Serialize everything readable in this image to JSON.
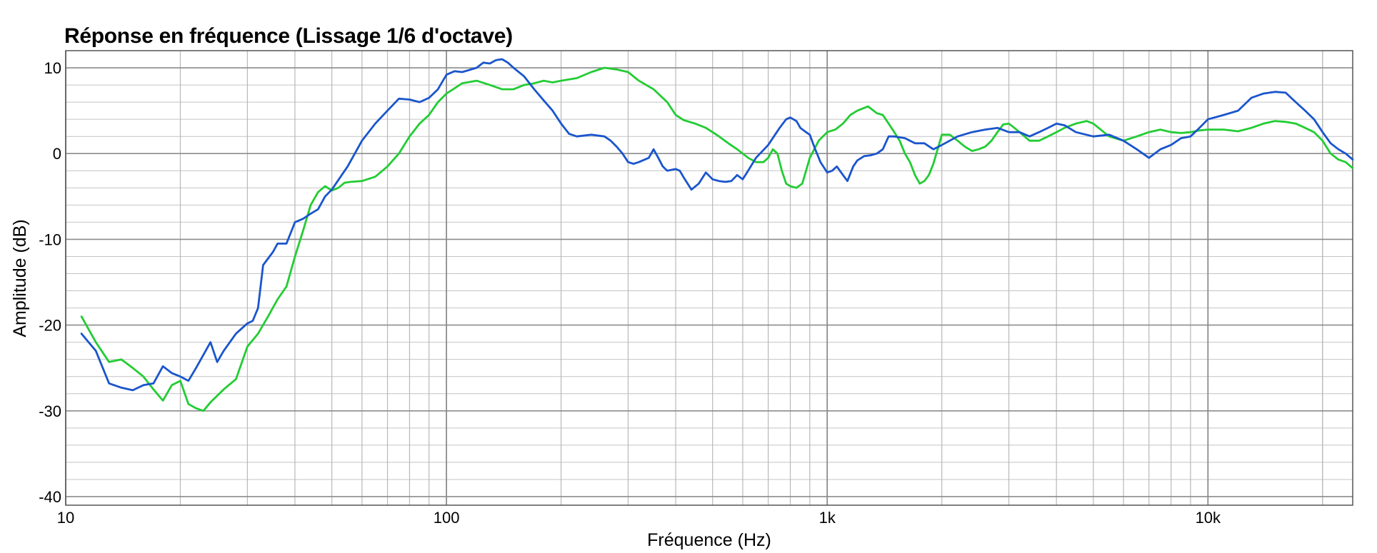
{
  "chart_data": {
    "type": "line",
    "title": "Réponse en fréquence (Lissage 1/6 d'octave)",
    "xlabel": "Fréquence (Hz)",
    "ylabel": "Amplitude (dB)",
    "xscale": "log",
    "xlim": [
      10,
      24000
    ],
    "ylim": [
      -41,
      12
    ],
    "grid": true,
    "x_ticks": [
      {
        "value": 10,
        "label": "10"
      },
      {
        "value": 100,
        "label": "100"
      },
      {
        "value": 1000,
        "label": "1k"
      },
      {
        "value": 10000,
        "label": "10k"
      }
    ],
    "y_ticks": [
      {
        "value": 10,
        "label": "10"
      },
      {
        "value": 0,
        "label": "0"
      },
      {
        "value": -10,
        "label": "-10"
      },
      {
        "value": -20,
        "label": "-20"
      },
      {
        "value": -30,
        "label": "-30"
      },
      {
        "value": -40,
        "label": "-40"
      }
    ],
    "series": [
      {
        "color": "#1a55cc",
        "points": [
          [
            11,
            -21
          ],
          [
            12,
            -23
          ],
          [
            13,
            -26.8
          ],
          [
            14,
            -27.3
          ],
          [
            15,
            -27.6
          ],
          [
            16,
            -27
          ],
          [
            17,
            -26.8
          ],
          [
            18,
            -24.8
          ],
          [
            19,
            -25.6
          ],
          [
            20,
            -26
          ],
          [
            21,
            -26.5
          ],
          [
            22,
            -25
          ],
          [
            24,
            -22
          ],
          [
            25,
            -24.3
          ],
          [
            26,
            -23
          ],
          [
            28,
            -21
          ],
          [
            30,
            -19.8
          ],
          [
            31,
            -19.5
          ],
          [
            32,
            -18
          ],
          [
            33,
            -13
          ],
          [
            35,
            -11.5
          ],
          [
            36,
            -10.5
          ],
          [
            38,
            -10.5
          ],
          [
            40,
            -8
          ],
          [
            42,
            -7.6
          ],
          [
            44,
            -7
          ],
          [
            46,
            -6.5
          ],
          [
            48,
            -5
          ],
          [
            50,
            -4.2
          ],
          [
            55,
            -1.5
          ],
          [
            60,
            1.5
          ],
          [
            65,
            3.5
          ],
          [
            70,
            5
          ],
          [
            75,
            6.4
          ],
          [
            80,
            6.3
          ],
          [
            85,
            6
          ],
          [
            90,
            6.5
          ],
          [
            95,
            7.5
          ],
          [
            100,
            9.2
          ],
          [
            105,
            9.6
          ],
          [
            110,
            9.5
          ],
          [
            120,
            10
          ],
          [
            125,
            10.6
          ],
          [
            130,
            10.5
          ],
          [
            135,
            10.9
          ],
          [
            140,
            11
          ],
          [
            145,
            10.6
          ],
          [
            150,
            10
          ],
          [
            160,
            9
          ],
          [
            170,
            7.5
          ],
          [
            180,
            6.2
          ],
          [
            190,
            5
          ],
          [
            200,
            3.5
          ],
          [
            210,
            2.3
          ],
          [
            220,
            2
          ],
          [
            240,
            2.2
          ],
          [
            260,
            2
          ],
          [
            270,
            1.5
          ],
          [
            280,
            0.8
          ],
          [
            290,
            0
          ],
          [
            300,
            -1
          ],
          [
            310,
            -1.2
          ],
          [
            320,
            -1
          ],
          [
            340,
            -0.5
          ],
          [
            350,
            0.5
          ],
          [
            360,
            -0.5
          ],
          [
            370,
            -1.5
          ],
          [
            380,
            -2
          ],
          [
            400,
            -1.8
          ],
          [
            410,
            -2
          ],
          [
            420,
            -2.8
          ],
          [
            440,
            -4.2
          ],
          [
            460,
            -3.5
          ],
          [
            480,
            -2.2
          ],
          [
            500,
            -3
          ],
          [
            520,
            -3.2
          ],
          [
            540,
            -3.3
          ],
          [
            560,
            -3.2
          ],
          [
            580,
            -2.5
          ],
          [
            600,
            -3
          ],
          [
            620,
            -2
          ],
          [
            650,
            -0.5
          ],
          [
            700,
            1
          ],
          [
            750,
            3
          ],
          [
            780,
            4
          ],
          [
            800,
            4.2
          ],
          [
            830,
            3.8
          ],
          [
            850,
            3
          ],
          [
            880,
            2.5
          ],
          [
            900,
            2.2
          ],
          [
            930,
            0.5
          ],
          [
            960,
            -1
          ],
          [
            1000,
            -2.2
          ],
          [
            1030,
            -2
          ],
          [
            1060,
            -1.5
          ],
          [
            1080,
            -2
          ],
          [
            1100,
            -2.5
          ],
          [
            1130,
            -3.2
          ],
          [
            1170,
            -1.5
          ],
          [
            1200,
            -0.8
          ],
          [
            1250,
            -0.3
          ],
          [
            1300,
            -0.2
          ],
          [
            1350,
            0
          ],
          [
            1400,
            0.5
          ],
          [
            1450,
            2
          ],
          [
            1500,
            2
          ],
          [
            1600,
            1.8
          ],
          [
            1700,
            1.2
          ],
          [
            1800,
            1.2
          ],
          [
            1900,
            0.5
          ],
          [
            2000,
            1
          ],
          [
            2200,
            2
          ],
          [
            2400,
            2.5
          ],
          [
            2600,
            2.8
          ],
          [
            2800,
            3
          ],
          [
            3000,
            2.5
          ],
          [
            3200,
            2.5
          ],
          [
            3400,
            2
          ],
          [
            3600,
            2.5
          ],
          [
            3800,
            3
          ],
          [
            4000,
            3.5
          ],
          [
            4200,
            3.3
          ],
          [
            4500,
            2.5
          ],
          [
            5000,
            2
          ],
          [
            5500,
            2.2
          ],
          [
            6000,
            1.5
          ],
          [
            6500,
            0.5
          ],
          [
            7000,
            -0.5
          ],
          [
            7500,
            0.5
          ],
          [
            8000,
            1
          ],
          [
            8500,
            1.8
          ],
          [
            9000,
            2
          ],
          [
            9500,
            3
          ],
          [
            10000,
            4
          ],
          [
            11000,
            4.5
          ],
          [
            12000,
            5
          ],
          [
            13000,
            6.5
          ],
          [
            14000,
            7
          ],
          [
            15000,
            7.2
          ],
          [
            16000,
            7.1
          ],
          [
            17000,
            6
          ],
          [
            18000,
            5
          ],
          [
            19000,
            4
          ],
          [
            20000,
            2.5
          ],
          [
            21000,
            1.2
          ],
          [
            22000,
            0.5
          ],
          [
            23000,
            0
          ],
          [
            24000,
            -0.7
          ]
        ]
      },
      {
        "color": "#22cc33",
        "points": [
          [
            11,
            -19
          ],
          [
            12,
            -22
          ],
          [
            13,
            -24.3
          ],
          [
            14,
            -24
          ],
          [
            15,
            -25
          ],
          [
            16,
            -26
          ],
          [
            17,
            -27.5
          ],
          [
            18,
            -28.8
          ],
          [
            19,
            -27
          ],
          [
            20,
            -26.5
          ],
          [
            21,
            -29.2
          ],
          [
            22,
            -29.7
          ],
          [
            23,
            -30
          ],
          [
            24,
            -29
          ],
          [
            26,
            -27.5
          ],
          [
            28,
            -26.3
          ],
          [
            30,
            -22.5
          ],
          [
            32,
            -21
          ],
          [
            34,
            -19
          ],
          [
            36,
            -17
          ],
          [
            38,
            -15.5
          ],
          [
            40,
            -12
          ],
          [
            42,
            -9
          ],
          [
            44,
            -6
          ],
          [
            46,
            -4.5
          ],
          [
            48,
            -3.8
          ],
          [
            50,
            -4.3
          ],
          [
            52,
            -4
          ],
          [
            54,
            -3.4
          ],
          [
            56,
            -3.3
          ],
          [
            60,
            -3.2
          ],
          [
            65,
            -2.7
          ],
          [
            70,
            -1.5
          ],
          [
            75,
            0
          ],
          [
            80,
            2
          ],
          [
            85,
            3.5
          ],
          [
            90,
            4.5
          ],
          [
            95,
            6
          ],
          [
            100,
            7
          ],
          [
            110,
            8.2
          ],
          [
            120,
            8.5
          ],
          [
            130,
            8
          ],
          [
            140,
            7.5
          ],
          [
            150,
            7.5
          ],
          [
            160,
            8
          ],
          [
            170,
            8.2
          ],
          [
            180,
            8.5
          ],
          [
            190,
            8.3
          ],
          [
            200,
            8.5
          ],
          [
            220,
            8.8
          ],
          [
            240,
            9.5
          ],
          [
            260,
            10
          ],
          [
            280,
            9.8
          ],
          [
            300,
            9.5
          ],
          [
            320,
            8.5
          ],
          [
            350,
            7.5
          ],
          [
            380,
            6
          ],
          [
            400,
            4.5
          ],
          [
            420,
            3.9
          ],
          [
            450,
            3.5
          ],
          [
            480,
            3
          ],
          [
            500,
            2.5
          ],
          [
            520,
            2
          ],
          [
            550,
            1.2
          ],
          [
            580,
            0.5
          ],
          [
            600,
            0
          ],
          [
            620,
            -0.5
          ],
          [
            650,
            -1
          ],
          [
            680,
            -1
          ],
          [
            700,
            -0.5
          ],
          [
            720,
            0.5
          ],
          [
            740,
            0
          ],
          [
            760,
            -2
          ],
          [
            780,
            -3.5
          ],
          [
            800,
            -3.8
          ],
          [
            830,
            -4
          ],
          [
            860,
            -3.5
          ],
          [
            880,
            -2
          ],
          [
            900,
            -0.5
          ],
          [
            950,
            1.5
          ],
          [
            1000,
            2.5
          ],
          [
            1050,
            2.8
          ],
          [
            1100,
            3.5
          ],
          [
            1150,
            4.5
          ],
          [
            1200,
            5
          ],
          [
            1280,
            5.5
          ],
          [
            1350,
            4.7
          ],
          [
            1400,
            4.5
          ],
          [
            1450,
            3.5
          ],
          [
            1500,
            2.5
          ],
          [
            1550,
            1.5
          ],
          [
            1600,
            0
          ],
          [
            1650,
            -1
          ],
          [
            1700,
            -2.5
          ],
          [
            1750,
            -3.5
          ],
          [
            1800,
            -3.2
          ],
          [
            1850,
            -2.5
          ],
          [
            1900,
            -1.2
          ],
          [
            1950,
            0.5
          ],
          [
            2000,
            2.2
          ],
          [
            2100,
            2.2
          ],
          [
            2200,
            1.5
          ],
          [
            2300,
            0.8
          ],
          [
            2400,
            0.3
          ],
          [
            2500,
            0.5
          ],
          [
            2600,
            0.8
          ],
          [
            2700,
            1.5
          ],
          [
            2800,
            2.5
          ],
          [
            2900,
            3.4
          ],
          [
            3000,
            3.5
          ],
          [
            3100,
            3
          ],
          [
            3200,
            2.5
          ],
          [
            3400,
            1.5
          ],
          [
            3600,
            1.5
          ],
          [
            3800,
            2
          ],
          [
            4000,
            2.5
          ],
          [
            4200,
            3
          ],
          [
            4500,
            3.5
          ],
          [
            4800,
            3.8
          ],
          [
            5000,
            3.5
          ],
          [
            5500,
            2
          ],
          [
            6000,
            1.5
          ],
          [
            6500,
            2
          ],
          [
            7000,
            2.5
          ],
          [
            7500,
            2.8
          ],
          [
            8000,
            2.5
          ],
          [
            8500,
            2.4
          ],
          [
            9000,
            2.5
          ],
          [
            9500,
            2.7
          ],
          [
            10000,
            2.8
          ],
          [
            11000,
            2.8
          ],
          [
            12000,
            2.6
          ],
          [
            13000,
            3
          ],
          [
            14000,
            3.5
          ],
          [
            15000,
            3.8
          ],
          [
            16000,
            3.7
          ],
          [
            17000,
            3.5
          ],
          [
            18000,
            3
          ],
          [
            19000,
            2.5
          ],
          [
            20000,
            1.5
          ],
          [
            21000,
            0
          ],
          [
            22000,
            -0.7
          ],
          [
            23000,
            -1
          ],
          [
            24000,
            -1.7
          ]
        ]
      }
    ]
  }
}
